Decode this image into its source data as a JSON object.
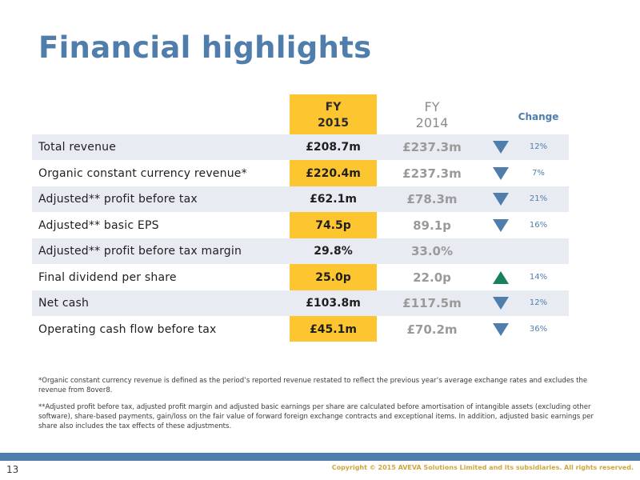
{
  "title": "Financial highlights",
  "header": {
    "fy2015_line1": "FY",
    "fy2015_line2": "2015",
    "fy2014_line1": "FY",
    "fy2014_line2": "2014",
    "change": "Change"
  },
  "rows": [
    {
      "label": "Total revenue",
      "fy2015": "£208.7m",
      "fy2014": "£237.3m",
      "direction": "down",
      "change": "12%"
    },
    {
      "label": "Organic constant currency revenue*",
      "fy2015": "£220.4m",
      "fy2014": "£237.3m",
      "direction": "down",
      "change": "7%"
    },
    {
      "label": "Adjusted** profit before tax",
      "fy2015": "£62.1m",
      "fy2014": "£78.3m",
      "direction": "down",
      "change": "21%"
    },
    {
      "label": "Adjusted** basic EPS",
      "fy2015": "74.5p",
      "fy2014": "89.1p",
      "direction": "down",
      "change": "16%"
    },
    {
      "label": "Adjusted** profit before tax margin",
      "fy2015": "29.8%",
      "fy2014": "33.0%",
      "direction": "",
      "change": ""
    },
    {
      "label": "Final dividend per share",
      "fy2015": "25.0p",
      "fy2014": "22.0p",
      "direction": "up",
      "change": "14%"
    },
    {
      "label": "Net cash",
      "fy2015": "£103.8m",
      "fy2014": "£117.5m",
      "direction": "down",
      "change": "12%"
    },
    {
      "label": "Operating cash flow before tax",
      "fy2015": "£45.1m",
      "fy2014": "£70.2m",
      "direction": "down",
      "change": "36%"
    }
  ],
  "footnotes": {
    "note1": "*Organic constant currency revenue is defined as the period’s reported revenue restated to reflect the previous year’s average exchange rates and excludes the revenue from 8over8.",
    "note2": "**Adjusted profit before tax, adjusted profit margin and adjusted basic earnings per share are calculated before amortisation of intangible assets (excluding other software), share-based payments, gain/loss on the fair value of forward foreign exchange contracts and exceptional items. In addition, adjusted basic earnings per share also includes the tax effects of these adjustments."
  },
  "footer": {
    "page_number": "13",
    "copyright": "Copyright © 2015 AVEVA Solutions Limited and its subsidiaries. All rights reserved."
  },
  "colors": {
    "title": "#4f7eac",
    "fy2015_highlight": "#fdc52f",
    "row_shade": "#e8ebf2",
    "arrow_down": "#4f7eac",
    "arrow_up": "#17825a",
    "footer_band": "#4f7eac"
  }
}
